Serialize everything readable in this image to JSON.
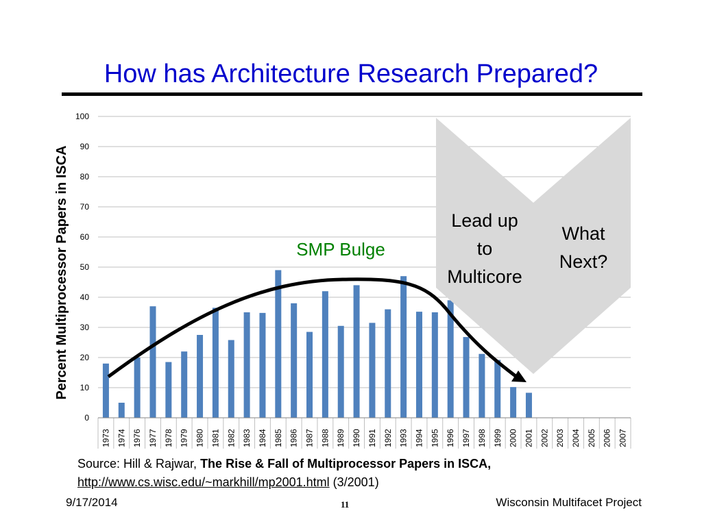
{
  "slide": {
    "title": "How has Architecture Research Prepared?",
    "source_prefix": "Source: Hill & Rajwar, ",
    "source_bold": "The Rise & Fall of Multiprocessor Papers in ISCA,",
    "source_link": "http://www.cs.wisc.edu/~markhill/mp2001.html",
    "source_suffix": " (3/2001)",
    "footer_date": "9/17/2014",
    "page_number": "11",
    "footer_project": "Wisconsin Multifacet Project"
  },
  "chart_data": {
    "type": "bar",
    "ylabel": "Percent Multiprocessor Papers in ISCA",
    "xlabel": "",
    "ylim": [
      0,
      100
    ],
    "yticks": [
      0,
      10,
      20,
      30,
      40,
      50,
      60,
      70,
      80,
      90,
      100
    ],
    "grid": true,
    "bar_color": "#4f81bd",
    "categories": [
      "1973",
      "1974",
      "1976",
      "1977",
      "1978",
      "1979",
      "1980",
      "1981",
      "1982",
      "1983",
      "1984",
      "1985",
      "1986",
      "1987",
      "1988",
      "1989",
      "1990",
      "1991",
      "1992",
      "1993",
      "1994",
      "1995",
      "1996",
      "1997",
      "1998",
      "1999",
      "2000",
      "2001",
      "2002",
      "2003",
      "2004",
      "2005",
      "2006",
      "2007"
    ],
    "values": [
      18,
      5,
      20,
      37,
      18.5,
      22,
      27.5,
      36.5,
      25.8,
      35,
      34.8,
      49,
      38,
      28.5,
      42,
      30.5,
      44,
      31.5,
      36,
      47,
      35.2,
      35,
      39,
      26.8,
      21.2,
      19.2,
      10.2,
      8.3,
      null,
      null,
      null,
      null,
      null,
      null
    ],
    "annotations": {
      "smp_bulge": "SMP Bulge",
      "chevron_1": [
        "Lead up",
        "to",
        "Multicore"
      ],
      "chevron_2": [
        "What",
        "Next?"
      ]
    },
    "annotation_colors": {
      "smp_bulge": "#008000",
      "chevron_fill": "#d9d9d9"
    }
  }
}
